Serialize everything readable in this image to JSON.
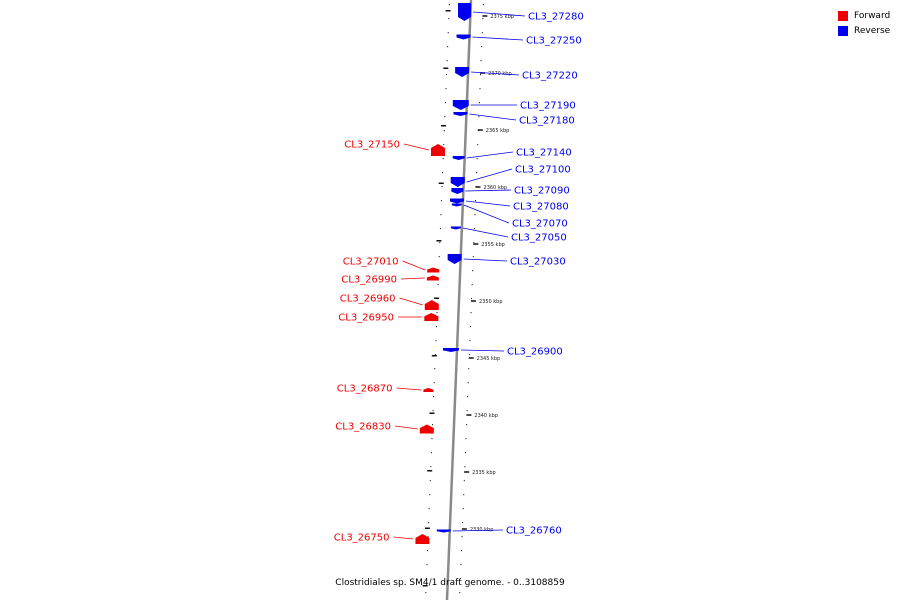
{
  "caption": "Clostridiales sp. SM4/1 draft genome. - 0..3108859",
  "legend": [
    {
      "label": "Forward",
      "color": "#ee0000"
    },
    {
      "label": "Reverse",
      "color": "#0000ee"
    }
  ],
  "scale_ticks": [
    "2375 kbp",
    "2370 kbp",
    "2365 kbp",
    "2360 kbp",
    "2355 kbp",
    "2350 kbp",
    "2345 kbp",
    "2340 kbp",
    "2335 kbp",
    "2330 kbp"
  ],
  "forward_genes": [
    "CL3_27150",
    "CL3_27010",
    "CL3_26990",
    "CL3_26960",
    "CL3_26950",
    "CL3_26870",
    "CL3_26830",
    "CL3_26750"
  ],
  "reverse_genes": [
    "CL3_27280",
    "CL3_27250",
    "CL3_27220",
    "CL3_27190",
    "CL3_27180",
    "CL3_27140",
    "CL3_27100",
    "CL3_27090",
    "CL3_27080",
    "CL3_27070",
    "CL3_27050",
    "CL3_27030",
    "CL3_26900",
    "CL3_26760"
  ]
}
